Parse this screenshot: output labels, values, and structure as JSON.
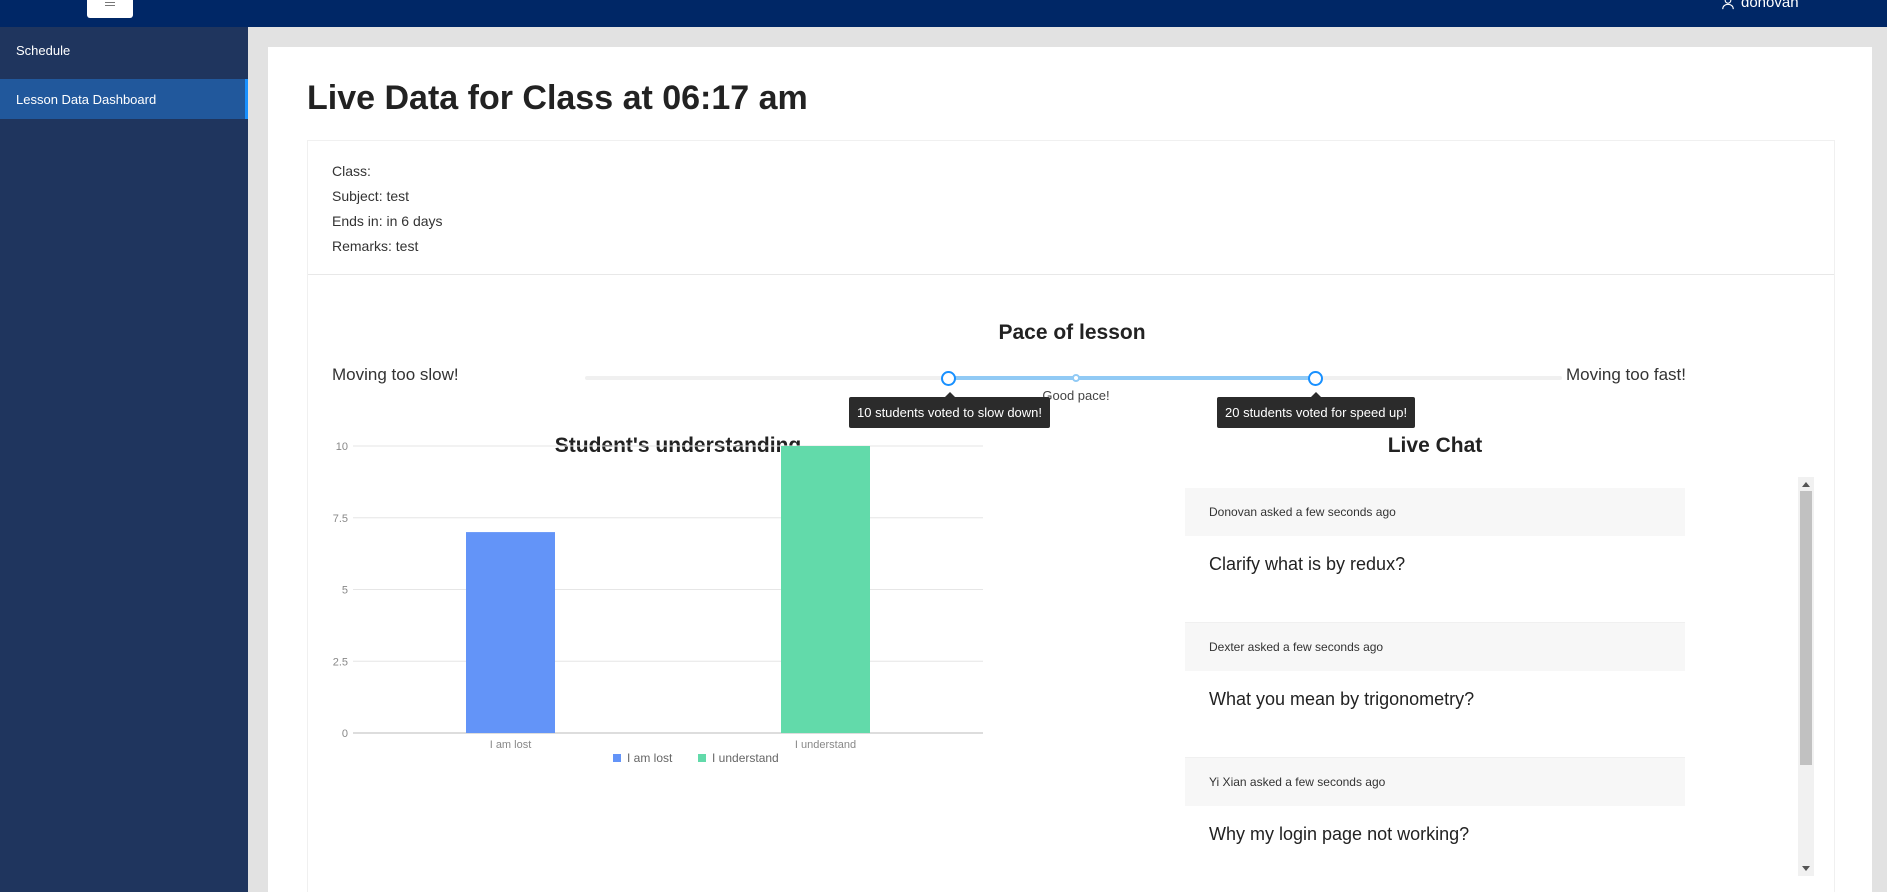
{
  "header": {
    "user_name": "donovan"
  },
  "sidebar": {
    "items": [
      {
        "label": "Schedule",
        "active": false
      },
      {
        "label": "Lesson Data Dashboard",
        "active": true
      }
    ]
  },
  "page": {
    "title": "Live Data for Class at 06:17 am"
  },
  "class_info": {
    "class_line": "Class:",
    "subject_line": "Subject: test",
    "ends_line": "Ends in: in 6 days",
    "remarks_line": "Remarks: test"
  },
  "pace": {
    "title": "Pace of lesson",
    "left_label": "Moving too slow!",
    "right_label": "Moving too fast!",
    "mark_label": "Good pace!",
    "slow_tooltip": "10 students voted to slow down!",
    "fast_tooltip": "20 students voted for speed up!",
    "slow_votes": 10,
    "fast_votes": 20
  },
  "understanding": {
    "title": "Student's understanding"
  },
  "chart_data": {
    "type": "bar",
    "title": "Student's understanding",
    "categories": [
      "I am lost",
      "I understand"
    ],
    "values": [
      7,
      10
    ],
    "colors": [
      "#6394f8",
      "#62daaa"
    ],
    "y_ticks": [
      "0",
      "2.5",
      "5",
      "7.5",
      "10"
    ],
    "ylim": [
      0,
      10
    ],
    "grid": true,
    "legend": "bottom",
    "legend_entries": [
      "I am lost",
      "I understand"
    ]
  },
  "chat": {
    "title": "Live Chat",
    "messages": [
      {
        "meta": "Donovan asked a few seconds ago",
        "text": "Clarify what is by redux?"
      },
      {
        "meta": "Dexter asked a few seconds ago",
        "text": "What you mean by trigonometry?"
      },
      {
        "meta": "Yi Xian asked a few seconds ago",
        "text": "Why my login page not working?"
      }
    ]
  },
  "colors": {
    "header_bg": "#002766",
    "sidebar_bg": "#1f355e",
    "active_item_bg": "#21589c",
    "accent": "#1890ff"
  }
}
